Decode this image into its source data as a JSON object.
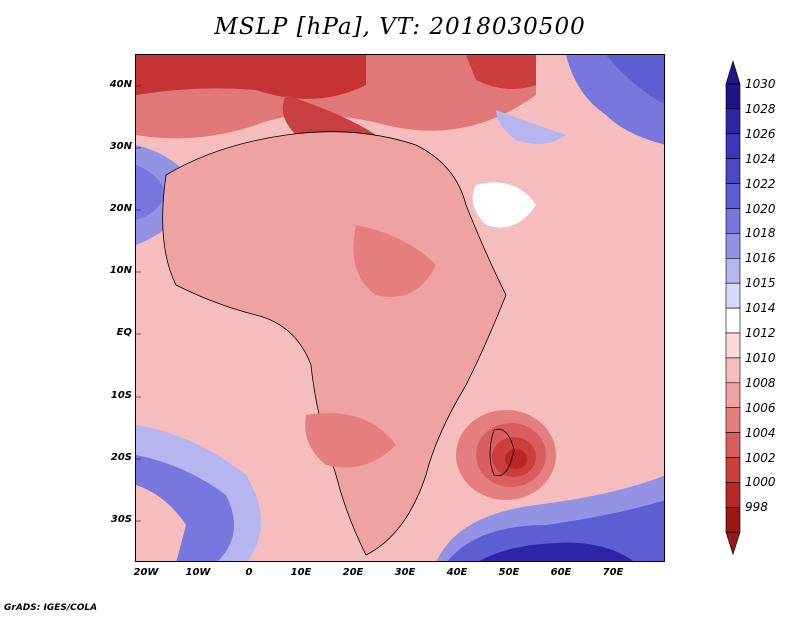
{
  "title": "MSLP [hPa], VT: 2018030500",
  "credit": "GrADS: IGES/COLA",
  "lat_labels": [
    "40N",
    "30N",
    "20N",
    "10N",
    "EQ",
    "10S",
    "20S",
    "30S"
  ],
  "lon_labels": [
    "20W",
    "10W",
    "0",
    "10E",
    "20E",
    "30E",
    "40E",
    "50E",
    "60E",
    "70E"
  ],
  "colorbar": {
    "levels": [
      "1030",
      "1028",
      "1026",
      "1024",
      "1022",
      "1020",
      "1018",
      "1016",
      "1015",
      "1014",
      "1012",
      "1010",
      "1008",
      "1006",
      "1004",
      "1002",
      "1000",
      "998"
    ],
    "colors": [
      "#1e1486",
      "#2d25a6",
      "#3b35bb",
      "#4b48c8",
      "#5e5ed3",
      "#7777dd",
      "#9393e6",
      "#b5b5f0",
      "#d8d8f8",
      "#ffffff",
      "#fbd9d9",
      "#f5bdbd",
      "#efa2a2",
      "#e57f7f",
      "#da5e5e",
      "#cc3d3d",
      "#b82626",
      "#9c1616"
    ]
  },
  "map": {
    "ocean_color": "#f5bdbd",
    "land_color": "#efa2a2",
    "border_color": "#000000"
  }
}
